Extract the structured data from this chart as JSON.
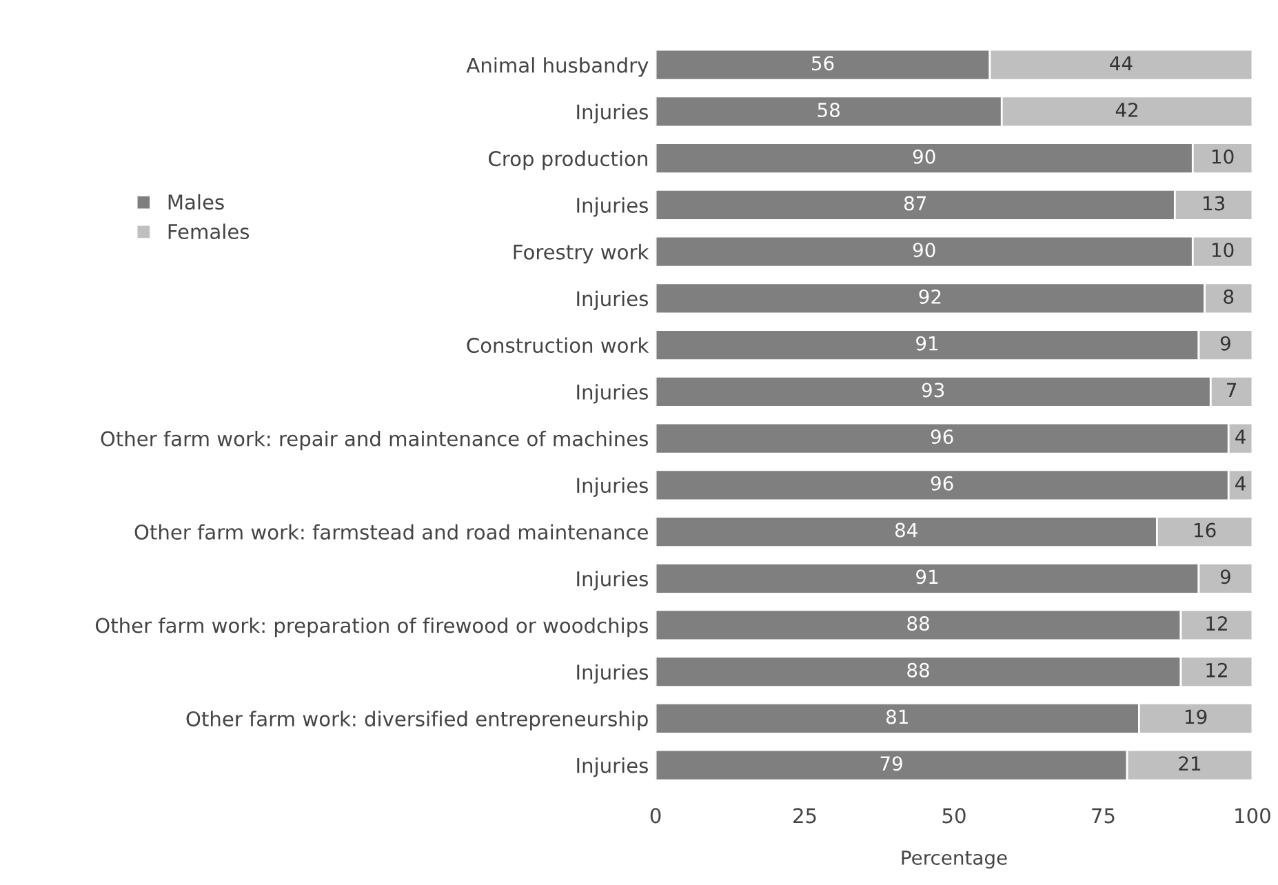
{
  "chart_data": {
    "type": "bar",
    "orientation": "horizontal",
    "stacked": true,
    "xlabel": "Percentage",
    "categories": [
      "Animal husbandry",
      "Injuries",
      "Crop production",
      "Injuries",
      "Forestry work",
      "Injuries",
      "Construction work",
      "Injuries",
      "Other farm work: repair and maintenance of machines",
      "Injuries",
      "Other farm work: farmstead and road maintenance",
      "Injuries",
      "Other farm work: preparation of firewood or woodchips",
      "Injuries",
      "Other farm work: diversified entrepreneurship",
      "Injuries"
    ],
    "series": [
      {
        "name": "Males",
        "color": "#7f7f7f",
        "values": [
          56,
          58,
          90,
          87,
          90,
          92,
          91,
          93,
          96,
          96,
          84,
          91,
          88,
          88,
          81,
          79
        ]
      },
      {
        "name": "Females",
        "color": "#bfbfbf",
        "values": [
          44,
          42,
          10,
          13,
          10,
          8,
          9,
          7,
          4,
          4,
          16,
          9,
          12,
          12,
          19,
          21
        ]
      }
    ],
    "xlim": [
      0,
      100
    ],
    "xticks": [
      0,
      25,
      50,
      75,
      100
    ],
    "data_labels": true,
    "legend": "top left",
    "grid": false
  }
}
